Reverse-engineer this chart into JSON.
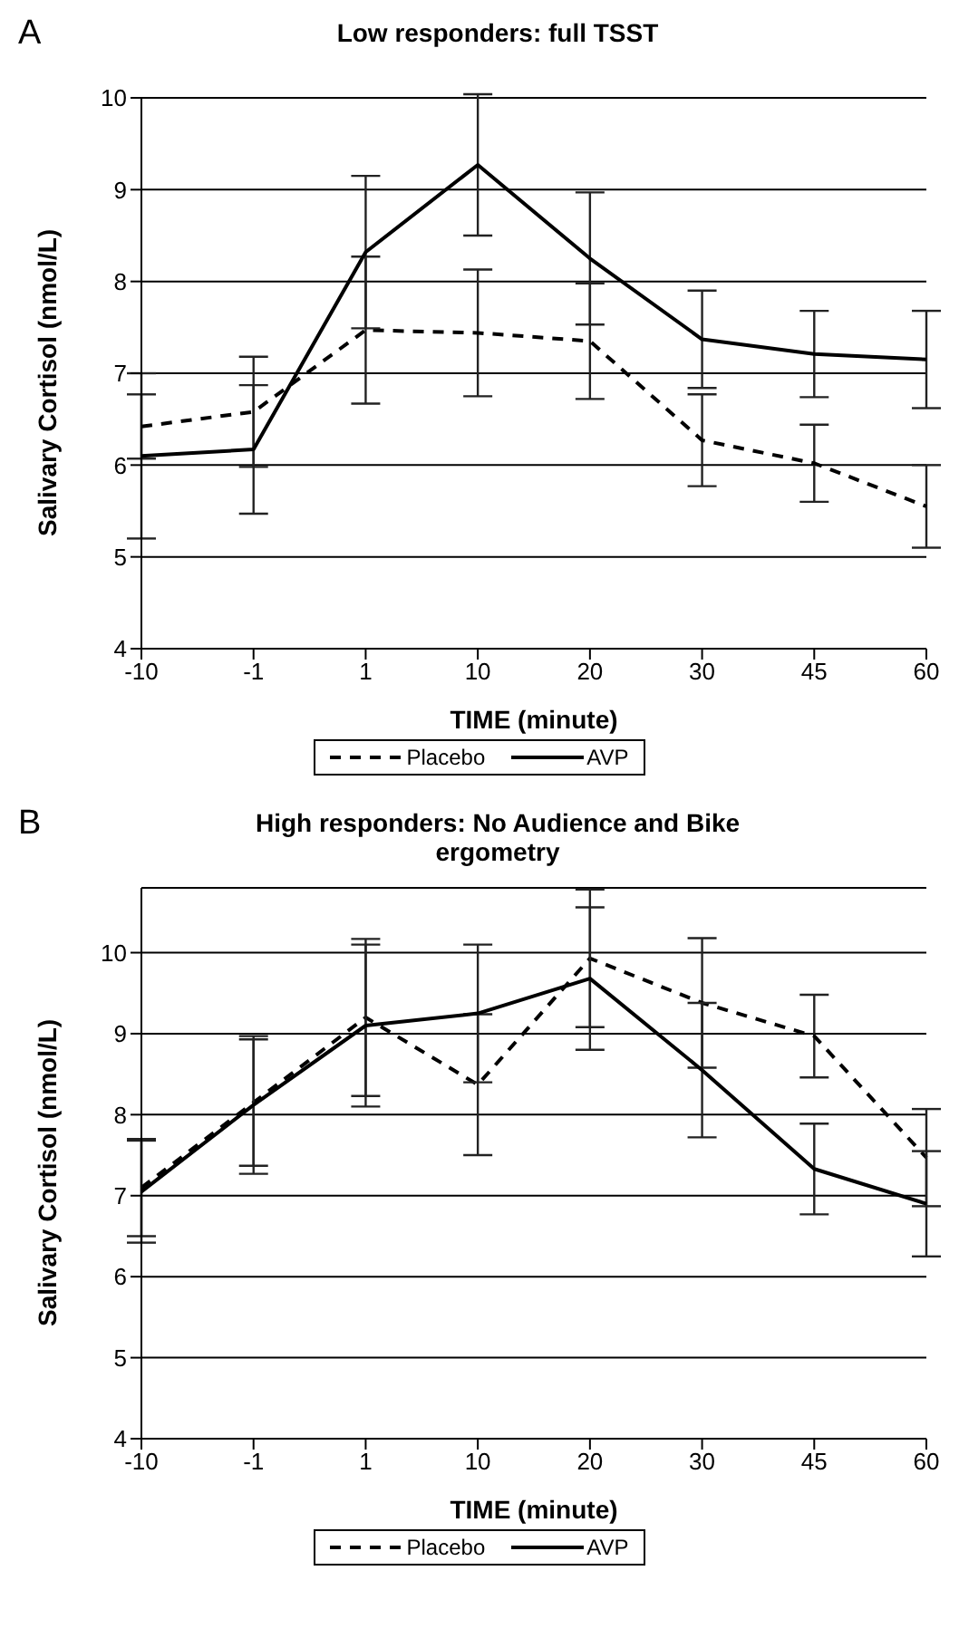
{
  "chart_data": [
    {
      "type": "line",
      "title": "Low responders: full TSST",
      "annotations": [
        "A"
      ],
      "xlabel": "TIME (minute)",
      "ylabel": "Salivary Cortisol (nmol/L)",
      "categories": [
        "-10",
        "-1",
        "1",
        "10",
        "20",
        "30",
        "45",
        "60"
      ],
      "ylim": [
        4,
        10
      ],
      "yticks": [
        4,
        5,
        6,
        7,
        8,
        9,
        10
      ],
      "grid": "y",
      "legend": "bottom",
      "marker": "none",
      "series": [
        {
          "name": "Placebo",
          "color": "#000000",
          "line_style": "dashed",
          "values": [
            6.42,
            6.58,
            7.47,
            7.44,
            7.35,
            6.27,
            6.02,
            5.55
          ],
          "errors": [
            0.35,
            0.6,
            0.8,
            0.69,
            0.63,
            0.5,
            0.42,
            0.45
          ]
        },
        {
          "name": "AVP",
          "color": "#000000",
          "line_style": "solid",
          "values": [
            6.1,
            6.17,
            8.32,
            9.27,
            8.25,
            7.37,
            7.21,
            7.15
          ],
          "errors": [
            0.9,
            0.7,
            0.83,
            0.77,
            0.72,
            0.53,
            0.47,
            0.53
          ]
        }
      ]
    },
    {
      "type": "line",
      "title": "High responders: No Audience and Bike ergometry",
      "annotations": [
        "B"
      ],
      "xlabel": "TIME (minute)",
      "ylabel": "Salivary Cortisol (nmol/L)",
      "categories": [
        "-10",
        "-1",
        "1",
        "10",
        "20",
        "30",
        "45",
        "60"
      ],
      "ylim": [
        4,
        10.8
      ],
      "yticks": [
        4,
        5,
        6,
        7,
        8,
        9,
        10
      ],
      "grid": "y",
      "legend": "bottom",
      "marker": "none",
      "series": [
        {
          "name": "Placebo",
          "color": "#000000",
          "line_style": "dashed",
          "values": [
            7.1,
            8.15,
            9.2,
            8.37,
            9.93,
            9.38,
            8.97,
            7.47
          ],
          "errors": [
            0.6,
            0.78,
            0.97,
            0.87,
            0.85,
            0.8,
            0.51,
            0.6
          ]
        },
        {
          "name": "AVP",
          "color": "#000000",
          "line_style": "solid",
          "values": [
            7.05,
            8.12,
            9.1,
            9.25,
            9.68,
            8.55,
            7.33,
            6.9
          ],
          "errors": [
            0.63,
            0.85,
            1.0,
            0.85,
            0.88,
            0.83,
            0.56,
            0.65
          ]
        }
      ]
    }
  ]
}
